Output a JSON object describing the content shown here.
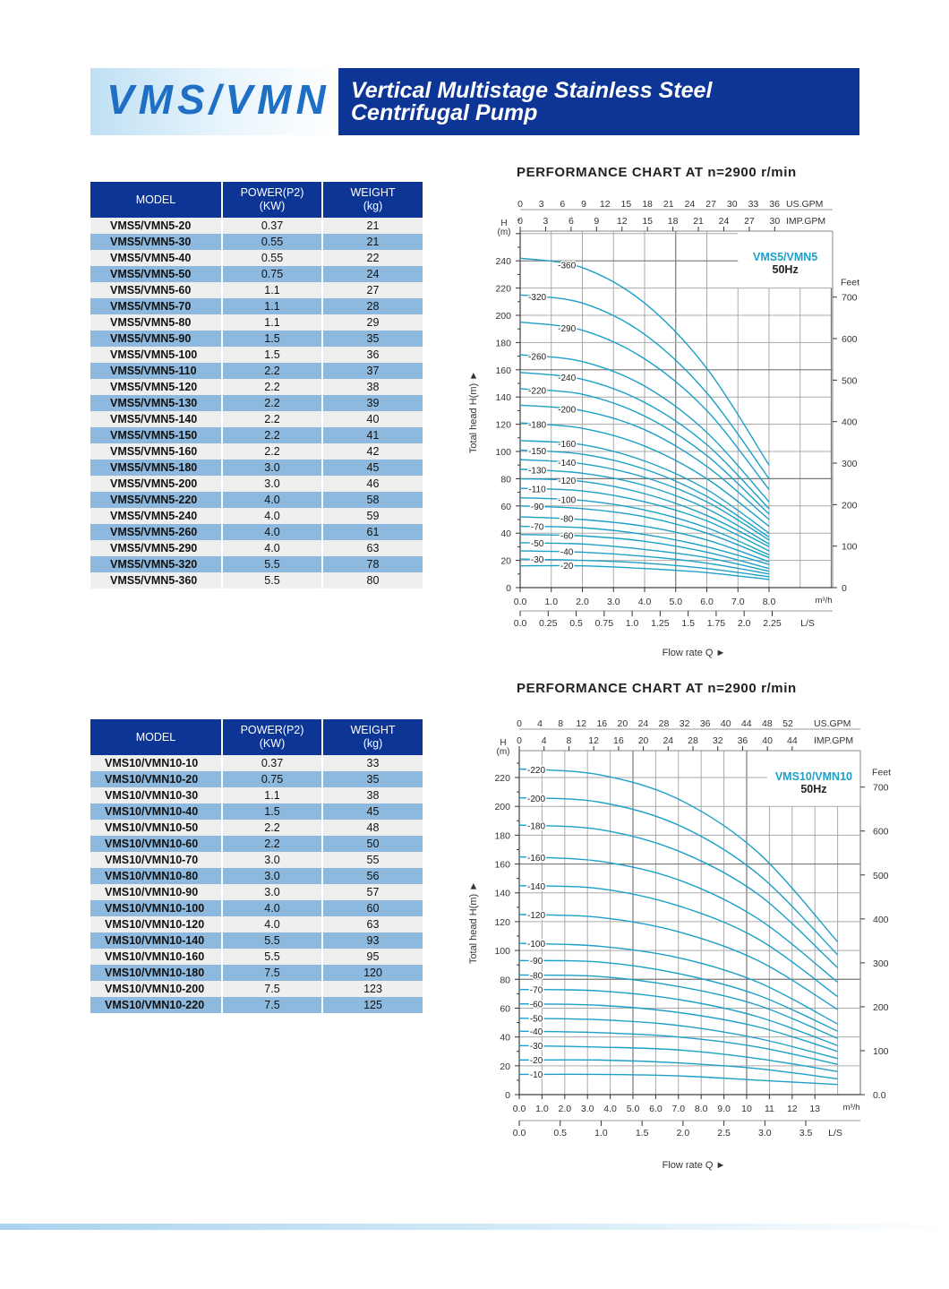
{
  "header": {
    "brand": "VMS/VMN",
    "title_line1": "Vertical Multistage Stainless Steel",
    "title_line2": "Centrifugal Pump"
  },
  "colors": {
    "brand_blue": "#0d3596",
    "curve": "#1ca0c8",
    "row_blue": "#8db9de",
    "row_gray": "#efefef"
  },
  "table1": {
    "headers": [
      "MODEL",
      "POWER(P2)\n(KW)",
      "WEIGHT\n(kg)"
    ],
    "rows": [
      [
        "VMS5/VMN5-20",
        "0.37",
        "21"
      ],
      [
        "VMS5/VMN5-30",
        "0.55",
        "21"
      ],
      [
        "VMS5/VMN5-40",
        "0.55",
        "22"
      ],
      [
        "VMS5/VMN5-50",
        "0.75",
        "24"
      ],
      [
        "VMS5/VMN5-60",
        "1.1",
        "27"
      ],
      [
        "VMS5/VMN5-70",
        "1.1",
        "28"
      ],
      [
        "VMS5/VMN5-80",
        "1.1",
        "29"
      ],
      [
        "VMS5/VMN5-90",
        "1.5",
        "35"
      ],
      [
        "VMS5/VMN5-100",
        "1.5",
        "36"
      ],
      [
        "VMS5/VMN5-110",
        "2.2",
        "37"
      ],
      [
        "VMS5/VMN5-120",
        "2.2",
        "38"
      ],
      [
        "VMS5/VMN5-130",
        "2.2",
        "39"
      ],
      [
        "VMS5/VMN5-140",
        "2.2",
        "40"
      ],
      [
        "VMS5/VMN5-150",
        "2.2",
        "41"
      ],
      [
        "VMS5/VMN5-160",
        "2.2",
        "42"
      ],
      [
        "VMS5/VMN5-180",
        "3.0",
        "45"
      ],
      [
        "VMS5/VMN5-200",
        "3.0",
        "46"
      ],
      [
        "VMS5/VMN5-220",
        "4.0",
        "58"
      ],
      [
        "VMS5/VMN5-240",
        "4.0",
        "59"
      ],
      [
        "VMS5/VMN5-260",
        "4.0",
        "61"
      ],
      [
        "VMS5/VMN5-290",
        "4.0",
        "63"
      ],
      [
        "VMS5/VMN5-320",
        "5.5",
        "78"
      ],
      [
        "VMS5/VMN5-360",
        "5.5",
        "80"
      ]
    ]
  },
  "table2": {
    "headers": [
      "MODEL",
      "POWER(P2)\n(KW)",
      "WEIGHT\n(kg)"
    ],
    "rows": [
      [
        "VMS10/VMN10-10",
        "0.37",
        "33"
      ],
      [
        "VMS10/VMN10-20",
        "0.75",
        "35"
      ],
      [
        "VMS10/VMN10-30",
        "1.1",
        "38"
      ],
      [
        "VMS10/VMN10-40",
        "1.5",
        "45"
      ],
      [
        "VMS10/VMN10-50",
        "2.2",
        "48"
      ],
      [
        "VMS10/VMN10-60",
        "2.2",
        "50"
      ],
      [
        "VMS10/VMN10-70",
        "3.0",
        "55"
      ],
      [
        "VMS10/VMN10-80",
        "3.0",
        "56"
      ],
      [
        "VMS10/VMN10-90",
        "3.0",
        "57"
      ],
      [
        "VMS10/VMN10-100",
        "4.0",
        "60"
      ],
      [
        "VMS10/VMN10-120",
        "4.0",
        "63"
      ],
      [
        "VMS10/VMN10-140",
        "5.5",
        "93"
      ],
      [
        "VMS10/VMN10-160",
        "5.5",
        "95"
      ],
      [
        "VMS10/VMN10-180",
        "7.5",
        "120"
      ],
      [
        "VMS10/VMN10-200",
        "7.5",
        "123"
      ],
      [
        "VMS10/VMN10-220",
        "7.5",
        "125"
      ]
    ]
  },
  "chart_data": [
    {
      "type": "line",
      "title": "PERFORMANCE CHART AT n=2900 r/min",
      "box_title": "VMS5/VMN5",
      "box_sub": "50Hz",
      "xlabel": "Flow rate  Q  ►",
      "ylabel": "Total  head H(m)  ►",
      "y_unit": "H\n(m)",
      "xlim": [
        0,
        10
      ],
      "ylim": [
        0,
        260
      ],
      "x_ticks": [
        "0.0",
        "1.0",
        "2.0",
        "3.0",
        "4.0",
        "5.0",
        "6.0",
        "7.0",
        "8.0"
      ],
      "x_unit": "m³/h",
      "y_ticks": [
        "0",
        "20",
        "40",
        "60",
        "80",
        "100",
        "120",
        "140",
        "160",
        "180",
        "200",
        "220",
        "240"
      ],
      "us_gpm_ticks": [
        "0",
        "3",
        "6",
        "9",
        "12",
        "15",
        "18",
        "21",
        "24",
        "27",
        "30",
        "33",
        "36"
      ],
      "us_gpm_unit": "US.GPM",
      "imp_gpm_ticks": [
        "0",
        "3",
        "6",
        "9",
        "12",
        "15",
        "18",
        "21",
        "24",
        "27",
        "30"
      ],
      "imp_gpm_unit": "IMP.GPM",
      "ls_ticks": [
        "0.0",
        "0.25",
        "0.5",
        "0.75",
        "1.0",
        "1.25",
        "1.5",
        "1.75",
        "2.0",
        "2.25"
      ],
      "ls_unit": "L/S",
      "feet_ticks": [
        "0",
        "100",
        "200",
        "300",
        "400",
        "500",
        "600",
        "700"
      ],
      "feet_unit": "Feet",
      "grid": true,
      "x": [
        0,
        2,
        4,
        6,
        8
      ],
      "series": [
        {
          "name": "-360",
          "values": [
            242,
            235,
            209,
            161,
            90
          ]
        },
        {
          "name": "-320",
          "values": [
            215,
            209,
            186,
            143,
            80
          ]
        },
        {
          "name": "-290",
          "values": [
            195,
            189,
            168,
            130,
            72
          ]
        },
        {
          "name": "-260",
          "values": [
            171,
            166,
            148,
            114,
            63
          ]
        },
        {
          "name": "-240",
          "values": [
            158,
            153,
            136,
            105,
            58
          ]
        },
        {
          "name": "-220",
          "values": [
            146,
            142,
            126,
            97,
            54
          ]
        },
        {
          "name": "-200",
          "values": [
            134,
            130,
            116,
            89,
            50
          ]
        },
        {
          "name": "-180",
          "values": [
            121,
            117,
            104,
            80,
            45
          ]
        },
        {
          "name": "-160",
          "values": [
            108,
            105,
            93,
            72,
            40
          ]
        },
        {
          "name": "-150",
          "values": [
            101,
            98,
            87,
            67,
            37
          ]
        },
        {
          "name": "-140",
          "values": [
            94,
            91,
            81,
            63,
            35
          ]
        },
        {
          "name": "-130",
          "values": [
            87,
            84,
            75,
            58,
            32
          ]
        },
        {
          "name": "-120",
          "values": [
            80,
            78,
            69,
            53,
            30
          ]
        },
        {
          "name": "-110",
          "values": [
            73,
            71,
            63,
            49,
            27
          ]
        },
        {
          "name": "-100",
          "values": [
            66,
            64,
            57,
            44,
            24
          ]
        },
        {
          "name": "-90",
          "values": [
            60,
            58,
            52,
            40,
            22
          ]
        },
        {
          "name": "-80",
          "values": [
            52,
            50,
            45,
            35,
            19
          ]
        },
        {
          "name": "-70",
          "values": [
            45,
            44,
            39,
            30,
            17
          ]
        },
        {
          "name": "-60",
          "values": [
            39,
            38,
            34,
            26,
            14
          ]
        },
        {
          "name": "-50",
          "values": [
            33,
            32,
            28,
            22,
            12
          ]
        },
        {
          "name": "-40",
          "values": [
            27,
            26,
            23,
            18,
            10
          ]
        },
        {
          "name": "-30",
          "values": [
            21,
            20,
            18,
            14,
            8
          ]
        },
        {
          "name": "-20",
          "values": [
            16,
            16,
            14,
            11,
            6
          ]
        }
      ]
    },
    {
      "type": "line",
      "title": "PERFORMANCE CHART AT n=2900 r/min",
      "box_title": "VMS10/VMN10",
      "box_sub": "50Hz",
      "xlabel": "Flow rate  Q  ►",
      "ylabel": "Total  head H(m)  ►",
      "y_unit": "H\n(m)",
      "xlim": [
        0,
        15
      ],
      "ylim": [
        0,
        238
      ],
      "x_ticks": [
        "0.0",
        "1.0",
        "2.0",
        "3.0",
        "4.0",
        "5.0",
        "6.0",
        "7.0",
        "8.0",
        "9.0",
        "10",
        "11",
        "12",
        "13"
      ],
      "x_unit": "m³/h",
      "y_ticks": [
        "0",
        "20",
        "40",
        "60",
        "80",
        "100",
        "120",
        "140",
        "160",
        "180",
        "200",
        "220"
      ],
      "us_gpm_ticks": [
        "0",
        "4",
        "8",
        "12",
        "16",
        "20",
        "24",
        "28",
        "32",
        "36",
        "40",
        "44",
        "48",
        "52"
      ],
      "us_gpm_unit": "US.GPM",
      "imp_gpm_ticks": [
        "0",
        "4",
        "8",
        "12",
        "16",
        "20",
        "24",
        "28",
        "32",
        "36",
        "40",
        "44"
      ],
      "imp_gpm_unit": "IMP.GPM",
      "ls_ticks": [
        "0.0",
        "0.5",
        "1.0",
        "1.5",
        "2.0",
        "2.5",
        "3.0",
        "3.5"
      ],
      "ls_unit": "L/S",
      "feet_ticks": [
        "0.0",
        "100",
        "200",
        "300",
        "400",
        "500",
        "600",
        "700"
      ],
      "feet_unit": "Feet",
      "grid": true,
      "x": [
        0,
        3.5,
        7,
        10.5,
        14
      ],
      "series": [
        {
          "name": "-220",
          "values": [
            226,
            222,
            205,
            168,
            106
          ]
        },
        {
          "name": "-200",
          "values": [
            206,
            203,
            187,
            153,
            97
          ]
        },
        {
          "name": "-180",
          "values": [
            187,
            184,
            169,
            139,
            88
          ]
        },
        {
          "name": "-160",
          "values": [
            165,
            162,
            149,
            122,
            78
          ]
        },
        {
          "name": "-140",
          "values": [
            145,
            143,
            131,
            108,
            68
          ]
        },
        {
          "name": "-120",
          "values": [
            125,
            123,
            113,
            93,
            59
          ]
        },
        {
          "name": "-100",
          "values": [
            105,
            103,
            95,
            78,
            49
          ]
        },
        {
          "name": "-90",
          "values": [
            93,
            92,
            84,
            69,
            44
          ]
        },
        {
          "name": "-80",
          "values": [
            83,
            82,
            75,
            62,
            39
          ]
        },
        {
          "name": "-70",
          "values": [
            73,
            72,
            66,
            54,
            34
          ]
        },
        {
          "name": "-60",
          "values": [
            63,
            62,
            57,
            47,
            30
          ]
        },
        {
          "name": "-50",
          "values": [
            53,
            52,
            48,
            39,
            25
          ]
        },
        {
          "name": "-40",
          "values": [
            44,
            43,
            40,
            33,
            21
          ]
        },
        {
          "name": "-30",
          "values": [
            34,
            33,
            31,
            25,
            16
          ]
        },
        {
          "name": "-20",
          "values": [
            24,
            24,
            22,
            18,
            11
          ]
        },
        {
          "name": "-10",
          "values": [
            14,
            14,
            13,
            10,
            7
          ]
        }
      ]
    }
  ]
}
